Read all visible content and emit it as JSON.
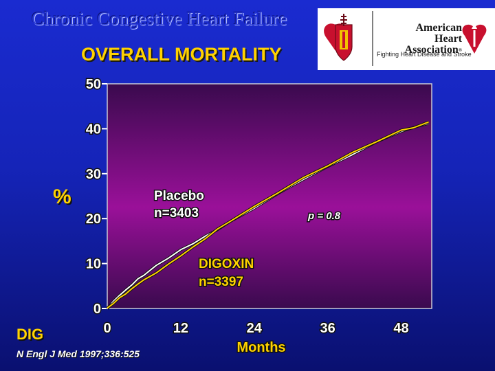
{
  "slide": {
    "title": "Chronic Congestive Heart Failure",
    "study_name": "DIG",
    "citation": "N Engl J Med 1997;336:525"
  },
  "logo": {
    "org_line1": "American Heart",
    "org_line2": "Association",
    "reg_mark": "®",
    "tagline": "Fighting Heart Disease and Stroke",
    "accent_color": "#c8102e"
  },
  "chart_data": {
    "type": "line",
    "title": "OVERALL MORTALITY",
    "xlabel": "Months",
    "ylabel": "%",
    "xlim": [
      0,
      53
    ],
    "ylim": [
      0,
      50
    ],
    "x_ticks": [
      0,
      12,
      24,
      36,
      48
    ],
    "y_ticks": [
      0,
      10,
      20,
      30,
      40,
      50
    ],
    "annotation": "p = 0.8",
    "series": [
      {
        "name": "Placebo",
        "n_label": "n=3403",
        "color": "#ffffff",
        "x": [
          0,
          1,
          2,
          3,
          4,
          5,
          6,
          8,
          10,
          12,
          14,
          16,
          18,
          20,
          24,
          28,
          32,
          36,
          40,
          44,
          48,
          50,
          52.5
        ],
        "y": [
          0,
          1.5,
          3,
          4,
          5.3,
          6.5,
          7.5,
          9.5,
          11.3,
          13,
          14.5,
          16,
          17.6,
          19.2,
          22.4,
          25.6,
          28.8,
          31.5,
          34.3,
          37,
          39.5,
          40.2,
          41.3
        ]
      },
      {
        "name": "DIGOXIN",
        "n_label": "n=3397",
        "color": "#ffd200",
        "x": [
          0,
          1,
          2,
          3,
          4,
          5,
          6,
          8,
          10,
          12,
          14,
          16,
          18,
          20,
          24,
          28,
          32,
          36,
          40,
          44,
          48,
          50,
          52.5
        ],
        "y": [
          0,
          1.2,
          2.3,
          3.3,
          4.3,
          5.5,
          6.3,
          8,
          9.8,
          11.8,
          13.6,
          15.6,
          17.6,
          19.4,
          22.6,
          25.9,
          29,
          31.8,
          34.6,
          37.2,
          39.6,
          40.3,
          41.4
        ]
      }
    ]
  }
}
